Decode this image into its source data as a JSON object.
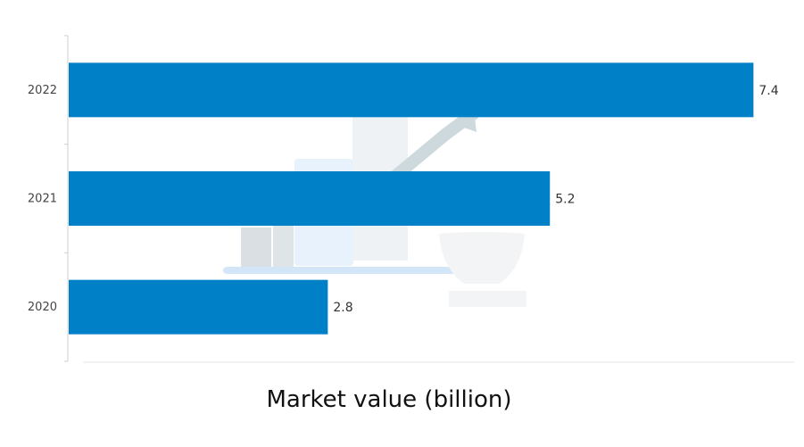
{
  "chart_data": {
    "type": "bar",
    "orientation": "horizontal",
    "categories": [
      "2020",
      "2021",
      "2022"
    ],
    "values": [
      2.8,
      5.2,
      7.4
    ],
    "data_labels": [
      "2.8",
      "5.2",
      "7.4"
    ],
    "xlabel": "Market value (billion)",
    "ylabel": "",
    "xlim": [
      0,
      8
    ],
    "grid": false,
    "legend": "none",
    "bar_color": "#0080C6",
    "background_decoration": "faded-laptop-and-growth-chart-watermark"
  }
}
